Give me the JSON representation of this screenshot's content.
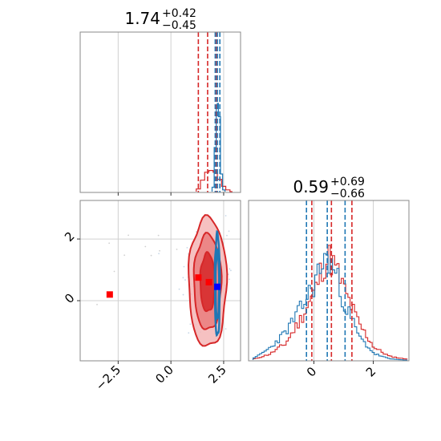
{
  "chart_data": [
    {
      "type": "histogram",
      "panel": "top-left",
      "title": {
        "value": "1.74",
        "plus": "+0.42",
        "minus": "−0.45"
      },
      "xlim": [
        -4.3,
        3.3
      ],
      "quantile_lines": {
        "red": [
          1.3,
          1.74,
          2.16
        ],
        "blue": [
          2.1,
          2.2,
          2.32
        ]
      },
      "series": [
        {
          "color": "#d62728",
          "x": [
            1.2,
            1.4,
            1.6,
            1.8,
            2.0,
            2.2,
            2.4,
            2.6,
            2.8
          ],
          "density": [
            0.03,
            0.13,
            0.22,
            0.24,
            0.22,
            0.14,
            0.06,
            0.02,
            0.0
          ]
        },
        {
          "color": "#1f77b4",
          "x": [
            1.95,
            2.05,
            2.15,
            2.2,
            2.25,
            2.35,
            2.45
          ],
          "density": [
            0.05,
            0.5,
            0.95,
            1.0,
            0.85,
            0.2,
            0.02
          ]
        }
      ],
      "grid": true
    },
    {
      "type": "scatter",
      "panel": "bottom-left",
      "xlim": [
        -4.3,
        3.3
      ],
      "ylim": [
        -1.95,
        3.25
      ],
      "xticks": [
        "−2.5",
        "0.0",
        "2.5"
      ],
      "xtick_values": [
        -2.5,
        0.0,
        2.5
      ],
      "yticks": [
        "0",
        "2"
      ],
      "ytick_values": [
        0,
        2
      ],
      "markers": [
        {
          "color": "#ff0000",
          "x": -2.9,
          "y": 0.2
        },
        {
          "color": "#ff0000",
          "x": 1.3,
          "y": 0.75
        },
        {
          "color": "#ff0000",
          "x": 1.8,
          "y": 0.6
        },
        {
          "color": "#0000ff",
          "x": 2.2,
          "y": 0.45
        }
      ],
      "contours": [
        {
          "color": "#d62728",
          "cx": 1.74,
          "cy": 0.59,
          "rx": [
            0.9,
            0.65,
            0.35
          ],
          "ry": [
            2.1,
            1.55,
            0.95
          ]
        },
        {
          "color": "#1f77b4",
          "cx": 2.2,
          "cy": 0.5,
          "rx": [
            0.12,
            0.08
          ],
          "ry": [
            1.65,
            1.1
          ]
        }
      ],
      "grid": true
    },
    {
      "type": "histogram",
      "panel": "bottom-right",
      "title": {
        "value": "0.59",
        "plus": "+0.69",
        "minus": "−0.66"
      },
      "xlim": [
        -2.2,
        3.2
      ],
      "xticks": [
        "0",
        "2"
      ],
      "xtick_values": [
        0,
        2
      ],
      "quantile_lines": {
        "red": [
          -0.07,
          0.59,
          1.28
        ],
        "blue": [
          -0.25,
          0.45,
          1.05
        ]
      },
      "series": [
        {
          "color": "#d62728",
          "x": [
            -2.0,
            -1.5,
            -1.0,
            -0.5,
            0.0,
            0.25,
            0.5,
            0.75,
            1.0,
            1.5,
            2.0,
            2.5,
            3.0
          ],
          "density": [
            0.01,
            0.05,
            0.13,
            0.32,
            0.55,
            0.75,
            0.82,
            0.7,
            0.55,
            0.28,
            0.1,
            0.03,
            0.01
          ]
        },
        {
          "color": "#1f77b4",
          "x": [
            -2.0,
            -1.5,
            -1.0,
            -0.5,
            0.0,
            0.25,
            0.5,
            0.75,
            1.0,
            1.5,
            2.0,
            2.5,
            3.0
          ],
          "density": [
            0.02,
            0.1,
            0.22,
            0.4,
            0.62,
            0.78,
            0.8,
            0.65,
            0.45,
            0.18,
            0.05,
            0.01,
            0.0
          ]
        }
      ],
      "grid": true
    }
  ]
}
